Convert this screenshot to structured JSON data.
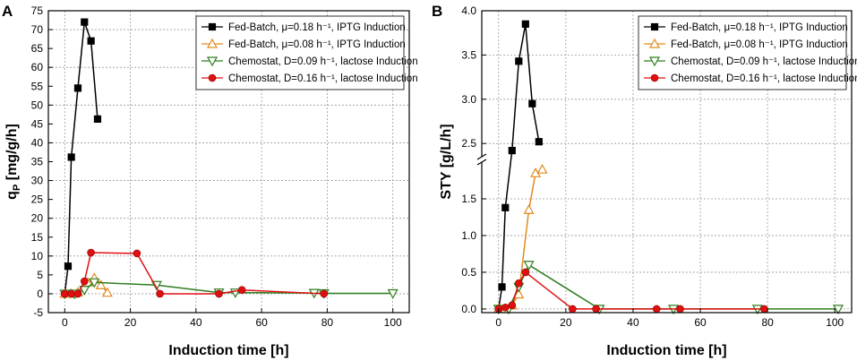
{
  "chart_data": [
    {
      "panel": "A",
      "type": "line",
      "xlabel": "Induction time [h]",
      "ylabel": "q",
      "ylabel_sub": "P",
      "ylabel_rest": " [mg/g/h]",
      "xlim": [
        -5,
        105
      ],
      "ylim": [
        -5,
        75
      ],
      "xticks": [
        0,
        20,
        40,
        60,
        80,
        100
      ],
      "yticks": [
        -5,
        0,
        5,
        10,
        15,
        20,
        25,
        30,
        35,
        40,
        45,
        50,
        55,
        60,
        65,
        70,
        75
      ],
      "legend_position": "top-right",
      "series": [
        {
          "name": "Fed-Batch,  μ=0.18 h⁻¹, IPTG Induction",
          "color": "#000000",
          "marker": "square",
          "x": [
            0,
            1,
            2,
            4,
            6,
            8,
            10
          ],
          "y": [
            0,
            7.3,
            36.2,
            54.5,
            72,
            67,
            46.3
          ]
        },
        {
          "name": "Fed-Batch,  μ=0.08 h⁻¹, IPTG Induction",
          "color": "#e08a1e",
          "marker": "triangle-up",
          "x": [
            0,
            2,
            4,
            7,
            9,
            11,
            13
          ],
          "y": [
            0,
            0,
            0.4,
            3,
            4.2,
            2.3,
            0.3
          ]
        },
        {
          "name": "Chemostat, D=0.09 h⁻¹, lactose Induction",
          "color": "#2e7d1e",
          "marker": "triangle-down",
          "x": [
            0,
            3,
            6,
            9,
            28,
            47,
            52,
            76,
            79,
            100
          ],
          "y": [
            0,
            0,
            1,
            3,
            2.3,
            0.3,
            0.3,
            0.2,
            0.1,
            0.1
          ]
        },
        {
          "name": "Chemostat, D=0.16 h⁻¹, lactose Induction",
          "color": "#e01010",
          "marker": "circle",
          "x": [
            0,
            2,
            4,
            6,
            8,
            22,
            29,
            47,
            54,
            79
          ],
          "y": [
            0,
            0,
            0,
            3.3,
            10.9,
            10.7,
            0,
            0,
            1,
            0
          ]
        }
      ]
    },
    {
      "panel": "B",
      "type": "line",
      "xlabel": "Induction time [h]",
      "ylabel": "STY [g/L/h]",
      "xlim": [
        -5,
        105
      ],
      "axis_break": {
        "lower": [
          -0.05,
          2.0
        ],
        "upper": [
          2.35,
          4.0
        ]
      },
      "xticks": [
        0,
        20,
        40,
        60,
        80,
        100
      ],
      "yticks_lower": [
        0.0,
        0.5,
        1.0,
        1.5
      ],
      "yticks_upper": [
        2.5,
        3.0,
        3.5,
        4.0
      ],
      "legend_position": "top-right",
      "series": [
        {
          "name": "Fed-Batch,  μ=0.18 h⁻¹, IPTG Induction",
          "color": "#000000",
          "marker": "square",
          "x": [
            0,
            1,
            2,
            4,
            6,
            8,
            10,
            12
          ],
          "y": [
            0,
            0.3,
            1.38,
            2.42,
            3.43,
            3.85,
            2.95,
            2.52
          ]
        },
        {
          "name": "Fed-Batch,  μ=0.08 h⁻¹, IPTG Induction",
          "color": "#e08a1e",
          "marker": "triangle-up",
          "x": [
            0,
            2,
            4,
            6,
            9,
            11,
            13
          ],
          "y": [
            0,
            0,
            0.05,
            0.2,
            1.35,
            1.85,
            1.9
          ]
        },
        {
          "name": "Chemostat, D=0.09 h⁻¹, lactose Induction",
          "color": "#2e7d1e",
          "marker": "triangle-down",
          "x": [
            0,
            3,
            6,
            9,
            30,
            52,
            77,
            101
          ],
          "y": [
            0,
            0,
            0.3,
            0.6,
            0,
            0,
            0,
            0
          ]
        },
        {
          "name": "Chemostat, D=0.16 h⁻¹, lactose Induction",
          "color": "#e01010",
          "marker": "circle",
          "x": [
            0,
            2,
            4,
            6,
            8,
            22,
            29,
            47,
            54,
            79
          ],
          "y": [
            0,
            0.02,
            0.05,
            0.35,
            0.5,
            0,
            0,
            0,
            0,
            0
          ]
        }
      ]
    }
  ]
}
